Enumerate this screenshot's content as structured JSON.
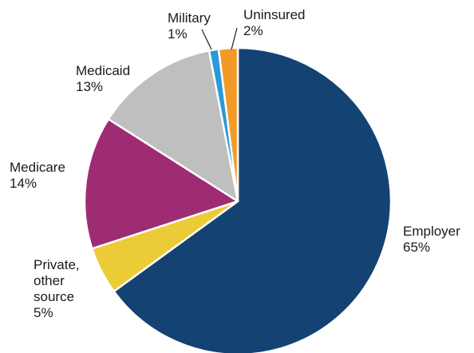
{
  "chart_data": {
    "type": "pie",
    "title": "",
    "start": "12 o'clock",
    "direction": "clockwise",
    "slices": [
      {
        "label_lines": [
          "Employer"
        ],
        "value": 65,
        "value_label": "65%",
        "color": "#134273"
      },
      {
        "label_lines": [
          "Private,",
          "other",
          "source"
        ],
        "value": 5,
        "value_label": "5%",
        "color": "#ebcb37"
      },
      {
        "label_lines": [
          "Medicare"
        ],
        "value": 14,
        "value_label": "14%",
        "color": "#9e2c73"
      },
      {
        "label_lines": [
          "Medicaid"
        ],
        "value": 13,
        "value_label": "13%",
        "color": "#bfbfbf"
      },
      {
        "label_lines": [
          "Military"
        ],
        "value": 1,
        "value_label": "1%",
        "color": "#2a9ad6"
      },
      {
        "label_lines": [
          "Uninsured"
        ],
        "value": 2,
        "value_label": "2%",
        "color": "#f29a27"
      }
    ]
  }
}
